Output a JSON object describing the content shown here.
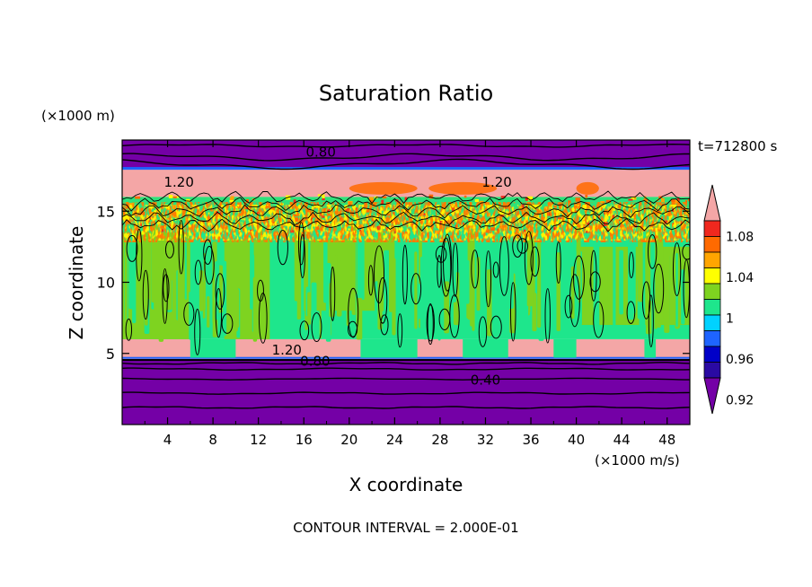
{
  "chart_data": {
    "type": "heatmap",
    "title": "Saturation Ratio",
    "xlabel": "X coordinate",
    "ylabel": "Z coordinate",
    "x_units": "(×1000 m/s)",
    "y_units": "(×1000 m)",
    "time_label": "t=712800 s",
    "footer": "CONTOUR INTERVAL = 2.000E-01",
    "xlim": [
      0,
      50
    ],
    "ylim": [
      0,
      20
    ],
    "x_ticks": [
      "4",
      "8",
      "12",
      "16",
      "20",
      "24",
      "28",
      "32",
      "36",
      "40",
      "44",
      "48"
    ],
    "y_ticks": [
      "5",
      "10",
      "15"
    ],
    "contour_labels": [
      {
        "text": "0.80",
        "x": 17.5,
        "z": 19.2
      },
      {
        "text": "1.20",
        "x": 5.0,
        "z": 17.1
      },
      {
        "text": "1.20",
        "x": 33.0,
        "z": 17.1
      },
      {
        "text": "1.20",
        "x": 14.5,
        "z": 5.3
      },
      {
        "text": "0.80",
        "x": 17.0,
        "z": 4.5
      },
      {
        "text": "0.40",
        "x": 32.0,
        "z": 3.2
      }
    ],
    "layers": [
      {
        "z": [
          0.0,
          4.6
        ],
        "level": "below_0.92",
        "description": "dry lower layer"
      },
      {
        "z": [
          4.6,
          6.0
        ],
        "level": "above_1.10",
        "description": "saturated base band"
      },
      {
        "z": [
          6.0,
          13.5
        ],
        "level": "0.98-1.02",
        "description": "convective mid layer"
      },
      {
        "z": [
          13.5,
          16.0
        ],
        "level": "mixed_1.00-1.10",
        "description": "speckled transition"
      },
      {
        "z": [
          16.0,
          18.0
        ],
        "level": "above_1.10",
        "description": "saturated upper band"
      },
      {
        "z": [
          18.0,
          20.0
        ],
        "level": "below_0.92",
        "description": "dry top layer"
      }
    ],
    "colorbar": {
      "labels": [
        "1.08",
        "1.04",
        "1",
        "0.96",
        "0.92"
      ],
      "colors": [
        "#7400a6",
        "#2a0aa3",
        "#0000c8",
        "#1e64ff",
        "#00d2ff",
        "#1ee68c",
        "#7ed320",
        "#ffff00",
        "#ffa500",
        "#ff6a00",
        "#f0281e",
        "#f4a6a6"
      ]
    }
  }
}
